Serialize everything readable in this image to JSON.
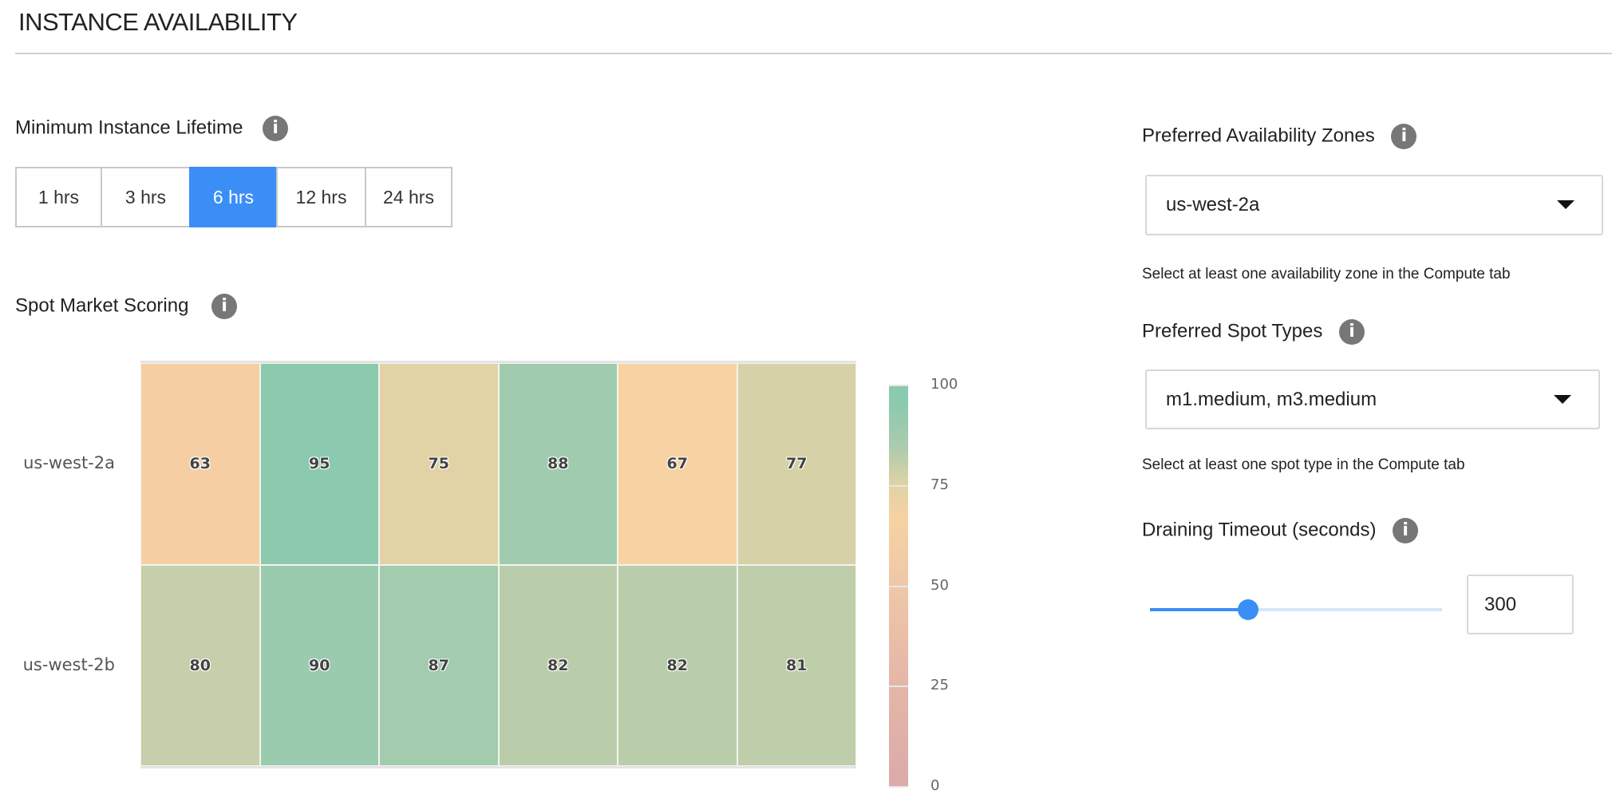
{
  "header": {
    "title": "INSTANCE AVAILABILITY"
  },
  "lifetime": {
    "label": "Minimum Instance Lifetime",
    "options": [
      "1 hrs",
      "3 hrs",
      "6 hrs",
      "12 hrs",
      "24 hrs"
    ],
    "selected": "6 hrs"
  },
  "scoring": {
    "label": "Spot Market Scoring"
  },
  "chart_data": {
    "type": "heatmap",
    "rows": [
      "us-west-2a",
      "us-west-2b"
    ],
    "values": [
      [
        63,
        95,
        75,
        88,
        67,
        77
      ],
      [
        80,
        90,
        87,
        82,
        82,
        81
      ]
    ],
    "colorbar": {
      "range": [
        0,
        100
      ],
      "ticks": [
        "100",
        "75",
        "50",
        "25",
        "0"
      ],
      "stops": [
        [
          0,
          "#dbaaaa"
        ],
        [
          25,
          "#e4b6a8"
        ],
        [
          50,
          "#efc7a8"
        ],
        [
          67,
          "#f7d2a2"
        ],
        [
          75,
          "#e1d3a5"
        ],
        [
          85,
          "#a9cbae"
        ],
        [
          95,
          "#8ccab0"
        ],
        [
          100,
          "#8ccab0"
        ]
      ]
    }
  },
  "zones": {
    "label": "Preferred Availability Zones",
    "value": "us-west-2a",
    "helper": "Select at least one availability zone in the Compute tab"
  },
  "spot_types": {
    "label": "Preferred Spot Types",
    "value": "m1.medium, m3.medium",
    "helper": "Select at least one spot type in the Compute tab"
  },
  "draining": {
    "label": "Draining Timeout (seconds)",
    "value": "300",
    "slider_fraction": 0.337
  },
  "colors": {
    "accent": "#3b8ef6",
    "track": "#d6e6fb",
    "info": "#777777"
  },
  "icons": {
    "info": "i"
  }
}
